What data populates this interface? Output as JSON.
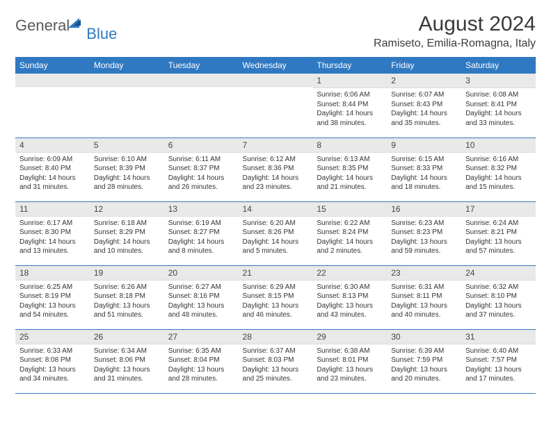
{
  "logo": {
    "main": "General",
    "accent": "Blue"
  },
  "title": "August 2024",
  "location": "Ramiseto, Emilia-Romagna, Italy",
  "colors": {
    "header_bg": "#2f79c2",
    "header_text": "#ffffff",
    "daynum_bg": "#e9e9e9",
    "row_border": "#2f79c2",
    "body_text": "#333333",
    "title_text": "#3a3a3a"
  },
  "dayHeaders": [
    "Sunday",
    "Monday",
    "Tuesday",
    "Wednesday",
    "Thursday",
    "Friday",
    "Saturday"
  ],
  "weeks": [
    [
      null,
      null,
      null,
      null,
      {
        "n": "1",
        "sr": "6:06 AM",
        "ss": "8:44 PM",
        "dl": "14 hours and 38 minutes."
      },
      {
        "n": "2",
        "sr": "6:07 AM",
        "ss": "8:43 PM",
        "dl": "14 hours and 35 minutes."
      },
      {
        "n": "3",
        "sr": "6:08 AM",
        "ss": "8:41 PM",
        "dl": "14 hours and 33 minutes."
      }
    ],
    [
      {
        "n": "4",
        "sr": "6:09 AM",
        "ss": "8:40 PM",
        "dl": "14 hours and 31 minutes."
      },
      {
        "n": "5",
        "sr": "6:10 AM",
        "ss": "8:39 PM",
        "dl": "14 hours and 28 minutes."
      },
      {
        "n": "6",
        "sr": "6:11 AM",
        "ss": "8:37 PM",
        "dl": "14 hours and 26 minutes."
      },
      {
        "n": "7",
        "sr": "6:12 AM",
        "ss": "8:36 PM",
        "dl": "14 hours and 23 minutes."
      },
      {
        "n": "8",
        "sr": "6:13 AM",
        "ss": "8:35 PM",
        "dl": "14 hours and 21 minutes."
      },
      {
        "n": "9",
        "sr": "6:15 AM",
        "ss": "8:33 PM",
        "dl": "14 hours and 18 minutes."
      },
      {
        "n": "10",
        "sr": "6:16 AM",
        "ss": "8:32 PM",
        "dl": "14 hours and 15 minutes."
      }
    ],
    [
      {
        "n": "11",
        "sr": "6:17 AM",
        "ss": "8:30 PM",
        "dl": "14 hours and 13 minutes."
      },
      {
        "n": "12",
        "sr": "6:18 AM",
        "ss": "8:29 PM",
        "dl": "14 hours and 10 minutes."
      },
      {
        "n": "13",
        "sr": "6:19 AM",
        "ss": "8:27 PM",
        "dl": "14 hours and 8 minutes."
      },
      {
        "n": "14",
        "sr": "6:20 AM",
        "ss": "8:26 PM",
        "dl": "14 hours and 5 minutes."
      },
      {
        "n": "15",
        "sr": "6:22 AM",
        "ss": "8:24 PM",
        "dl": "14 hours and 2 minutes."
      },
      {
        "n": "16",
        "sr": "6:23 AM",
        "ss": "8:23 PM",
        "dl": "13 hours and 59 minutes."
      },
      {
        "n": "17",
        "sr": "6:24 AM",
        "ss": "8:21 PM",
        "dl": "13 hours and 57 minutes."
      }
    ],
    [
      {
        "n": "18",
        "sr": "6:25 AM",
        "ss": "8:19 PM",
        "dl": "13 hours and 54 minutes."
      },
      {
        "n": "19",
        "sr": "6:26 AM",
        "ss": "8:18 PM",
        "dl": "13 hours and 51 minutes."
      },
      {
        "n": "20",
        "sr": "6:27 AM",
        "ss": "8:16 PM",
        "dl": "13 hours and 48 minutes."
      },
      {
        "n": "21",
        "sr": "6:29 AM",
        "ss": "8:15 PM",
        "dl": "13 hours and 46 minutes."
      },
      {
        "n": "22",
        "sr": "6:30 AM",
        "ss": "8:13 PM",
        "dl": "13 hours and 43 minutes."
      },
      {
        "n": "23",
        "sr": "6:31 AM",
        "ss": "8:11 PM",
        "dl": "13 hours and 40 minutes."
      },
      {
        "n": "24",
        "sr": "6:32 AM",
        "ss": "8:10 PM",
        "dl": "13 hours and 37 minutes."
      }
    ],
    [
      {
        "n": "25",
        "sr": "6:33 AM",
        "ss": "8:08 PM",
        "dl": "13 hours and 34 minutes."
      },
      {
        "n": "26",
        "sr": "6:34 AM",
        "ss": "8:06 PM",
        "dl": "13 hours and 31 minutes."
      },
      {
        "n": "27",
        "sr": "6:35 AM",
        "ss": "8:04 PM",
        "dl": "13 hours and 28 minutes."
      },
      {
        "n": "28",
        "sr": "6:37 AM",
        "ss": "8:03 PM",
        "dl": "13 hours and 25 minutes."
      },
      {
        "n": "29",
        "sr": "6:38 AM",
        "ss": "8:01 PM",
        "dl": "13 hours and 23 minutes."
      },
      {
        "n": "30",
        "sr": "6:39 AM",
        "ss": "7:59 PM",
        "dl": "13 hours and 20 minutes."
      },
      {
        "n": "31",
        "sr": "6:40 AM",
        "ss": "7:57 PM",
        "dl": "13 hours and 17 minutes."
      }
    ]
  ],
  "labels": {
    "sunrise": "Sunrise: ",
    "sunset": "Sunset: ",
    "daylight": "Daylight: "
  }
}
